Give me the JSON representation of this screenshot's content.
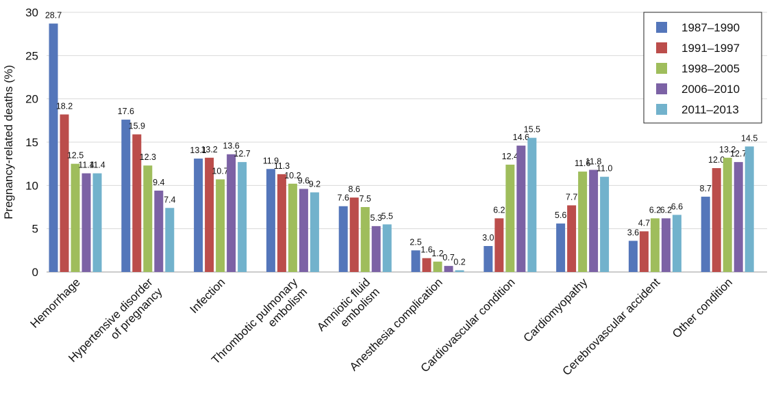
{
  "chart_data": {
    "type": "bar",
    "y_label": "Pregnancy-related deaths (%)",
    "categories": [
      [
        "Hemorrhage"
      ],
      [
        "Hypertensive disorder",
        "of pregnancy"
      ],
      [
        "Infection"
      ],
      [
        "Thrombotic pulmonary",
        "embolism"
      ],
      [
        "Amniotic fluid",
        "embolism"
      ],
      [
        "Anesthesia complication"
      ],
      [
        "Cardiovascular condition"
      ],
      [
        "Cardiomyopathy"
      ],
      [
        "Cerebrovascular accident"
      ],
      [
        "Other condition"
      ]
    ],
    "series": [
      {
        "name": "1987–1990",
        "color": "#5476ba",
        "values": [
          28.7,
          17.6,
          13.1,
          11.9,
          7.6,
          2.5,
          3.0,
          5.6,
          3.6,
          8.7
        ],
        "value_labels": [
          "28.7",
          "17.6",
          "13.1",
          "11.9",
          "7.6",
          "2.5",
          "3.0",
          "5.6",
          "3.6",
          "8.7"
        ]
      },
      {
        "name": "1991–1997",
        "color": "#bb4d4b",
        "values": [
          18.2,
          15.9,
          13.2,
          11.3,
          8.6,
          1.6,
          6.2,
          7.7,
          4.7,
          12.0
        ],
        "value_labels": [
          "18.2",
          "15.9",
          "13.2",
          "11.3",
          "8.6",
          "1.6",
          "6.2",
          "7.7",
          "4.7",
          "12.0"
        ]
      },
      {
        "name": "1998–2005",
        "color": "#9fbd5c",
        "values": [
          12.5,
          12.3,
          10.7,
          10.2,
          7.5,
          1.2,
          12.4,
          11.6,
          6.2,
          13.2
        ],
        "value_labels": [
          "12.5",
          "12.3",
          "10.7",
          "10.2",
          "7.5",
          "1.2",
          "12.4",
          "11.6",
          "6.2",
          "13.2"
        ]
      },
      {
        "name": "2006–2010",
        "color": "#7c62a5",
        "values": [
          11.4,
          9.4,
          13.6,
          9.6,
          5.3,
          0.7,
          14.6,
          11.8,
          6.2,
          12.7
        ],
        "value_labels": [
          "11.4",
          "9.4",
          "13.6",
          "9.6",
          "5.3",
          "0.7",
          "14.6",
          "11.8",
          "6.2",
          "12.7"
        ]
      },
      {
        "name": "2011–2013",
        "color": "#72b2cc",
        "values": [
          11.4,
          7.4,
          12.7,
          9.2,
          5.5,
          0.2,
          15.5,
          11.0,
          6.6,
          14.5
        ],
        "value_labels": [
          "11.4",
          "7.4",
          "12.7",
          "9.2",
          "5.5",
          "0.2",
          "15.5",
          "11.0",
          "6.6",
          "14.5"
        ]
      }
    ],
    "ylim": [
      0,
      30
    ],
    "yticks": [
      0,
      5,
      10,
      15,
      20,
      25,
      30
    ],
    "grid": true,
    "legend": "top-right"
  }
}
